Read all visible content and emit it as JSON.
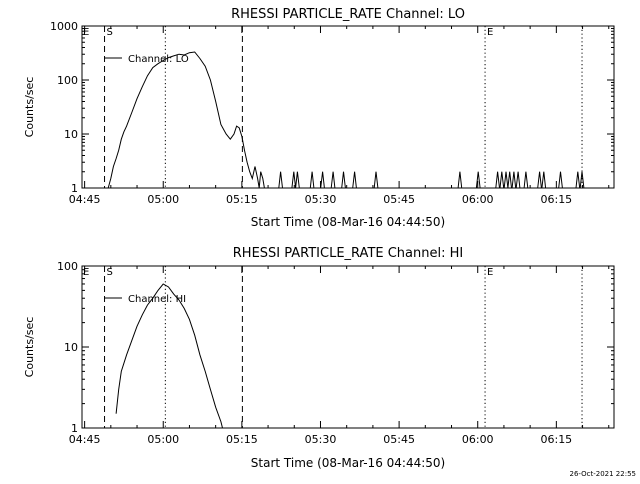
{
  "footer": {
    "timestamp": "26-Oct-2021 22:55"
  },
  "chart_data": [
    {
      "type": "line",
      "title": "RHESSI PARTICLE_RATE Channel: LO",
      "xlabel": "Start Time (08-Mar-16 04:44:50)",
      "ylabel": "Counts/sec",
      "yscale": "log",
      "xlim": [
        -0.5,
        101
      ],
      "ylim": [
        1,
        1000
      ],
      "x_ticks": [
        {
          "v": 0,
          "label": "04:45"
        },
        {
          "v": 15,
          "label": "05:00"
        },
        {
          "v": 30,
          "label": "05:15"
        },
        {
          "v": 45,
          "label": "05:30"
        },
        {
          "v": 60,
          "label": "05:45"
        },
        {
          "v": 75,
          "label": "06:00"
        },
        {
          "v": 90,
          "label": "06:15"
        }
      ],
      "y_ticks": [
        {
          "v": 1,
          "label": "1"
        },
        {
          "v": 10,
          "label": "10"
        },
        {
          "v": 100,
          "label": "100"
        },
        {
          "v": 1000,
          "label": "1000"
        }
      ],
      "legend": {
        "label": "Channel: LO",
        "position": "top-left"
      },
      "markers": [
        {
          "label": "S",
          "x": 3.8,
          "style": "dashed"
        },
        {
          "label": "",
          "x": 30.1,
          "style": "dashed"
        },
        {
          "label": "",
          "x": 15.4,
          "style": "dotted"
        },
        {
          "label": "E",
          "x": 76.4,
          "style": "dotted"
        },
        {
          "label": "",
          "x": 94.9,
          "style": "dotted"
        }
      ],
      "edge_labels": [
        {
          "label": "E",
          "x": -0.5
        }
      ],
      "series": [
        {
          "name": "Channel: LO",
          "x": [
            4.5,
            5.0,
            5.5,
            6.0,
            6.5,
            7.0,
            7.5,
            8.0,
            9.0,
            10.0,
            11.0,
            12.0,
            13.0,
            14.0,
            15.0,
            16.0,
            17.0,
            18.0,
            19.0,
            20.0,
            21.0,
            22.0,
            23.0,
            24.0,
            25.0,
            26.0,
            27.0,
            27.8,
            28.5,
            29.0,
            29.5,
            30.0,
            30.5,
            31.0,
            31.5,
            32.0,
            32.5,
            33.0,
            33.3,
            33.6,
            34.0,
            34.3
          ],
          "y": [
            1,
            1.5,
            2.5,
            3.5,
            5,
            8,
            11,
            14,
            25,
            45,
            75,
            120,
            170,
            200,
            230,
            260,
            280,
            300,
            290,
            320,
            330,
            250,
            180,
            100,
            40,
            15,
            10,
            8,
            10,
            14,
            13,
            9,
            5,
            3,
            2,
            1.5,
            2.5,
            1.5,
            1,
            2,
            1.5,
            1
          ]
        }
      ],
      "spikes": [
        37.4,
        39.9,
        40.6,
        43.4,
        45.4,
        47.4,
        49.4,
        51.5,
        55.6,
        71.6,
        75.1,
        78.8,
        79.6,
        80.4,
        81.1,
        81.9,
        82.7,
        84.2,
        86.8,
        87.6,
        90.8,
        94.1,
        94.9
      ]
    },
    {
      "type": "line",
      "title": "RHESSI PARTICLE_RATE Channel: HI",
      "xlabel": "Start Time (08-Mar-16 04:44:50)",
      "ylabel": "Counts/sec",
      "yscale": "log",
      "xlim": [
        -0.5,
        101
      ],
      "ylim": [
        1,
        100
      ],
      "x_ticks": [
        {
          "v": 0,
          "label": "04:45"
        },
        {
          "v": 15,
          "label": "05:00"
        },
        {
          "v": 30,
          "label": "05:15"
        },
        {
          "v": 45,
          "label": "05:30"
        },
        {
          "v": 60,
          "label": "05:45"
        },
        {
          "v": 75,
          "label": "06:00"
        },
        {
          "v": 90,
          "label": "06:15"
        }
      ],
      "y_ticks": [
        {
          "v": 1,
          "label": "1"
        },
        {
          "v": 10,
          "label": "10"
        },
        {
          "v": 100,
          "label": "100"
        }
      ],
      "legend": {
        "label": "Channel: HI",
        "position": "top-left"
      },
      "markers": [
        {
          "label": "S",
          "x": 3.8,
          "style": "dashed"
        },
        {
          "label": "",
          "x": 30.1,
          "style": "dashed"
        },
        {
          "label": "",
          "x": 15.4,
          "style": "dotted"
        },
        {
          "label": "E",
          "x": 76.4,
          "style": "dotted"
        },
        {
          "label": "",
          "x": 94.9,
          "style": "dotted"
        }
      ],
      "edge_labels": [
        {
          "label": "E",
          "x": -0.5
        }
      ],
      "series": [
        {
          "name": "Channel: HI",
          "x": [
            6.0,
            6.5,
            7.0,
            8.0,
            9.0,
            10.0,
            11.0,
            12.0,
            13.0,
            14.0,
            15.0,
            16.0,
            17.0,
            18.0,
            19.0,
            20.0,
            21.0,
            22.0,
            23.0,
            24.0,
            25.0,
            26.0,
            26.3
          ],
          "y": [
            1.5,
            3,
            5,
            8,
            12,
            18,
            25,
            33,
            40,
            50,
            60,
            55,
            45,
            38,
            30,
            22,
            14,
            8,
            5,
            3,
            1.8,
            1.2,
            1
          ]
        }
      ],
      "spikes": []
    }
  ]
}
